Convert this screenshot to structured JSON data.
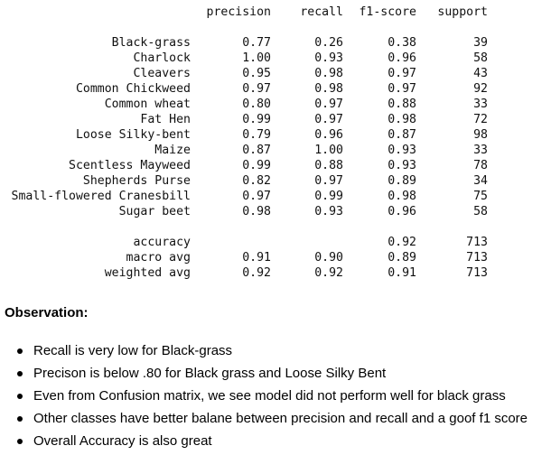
{
  "report": {
    "columns": [
      "precision",
      "recall",
      "f1-score",
      "support"
    ],
    "classes": [
      {
        "label": "Black-grass",
        "precision": "0.77",
        "recall": "0.26",
        "f1": "0.38",
        "support": "39"
      },
      {
        "label": "Charlock",
        "precision": "1.00",
        "recall": "0.93",
        "f1": "0.96",
        "support": "58"
      },
      {
        "label": "Cleavers",
        "precision": "0.95",
        "recall": "0.98",
        "f1": "0.97",
        "support": "43"
      },
      {
        "label": "Common Chickweed",
        "precision": "0.97",
        "recall": "0.98",
        "f1": "0.97",
        "support": "92"
      },
      {
        "label": "Common wheat",
        "precision": "0.80",
        "recall": "0.97",
        "f1": "0.88",
        "support": "33"
      },
      {
        "label": "Fat Hen",
        "precision": "0.99",
        "recall": "0.97",
        "f1": "0.98",
        "support": "72"
      },
      {
        "label": "Loose Silky-bent",
        "precision": "0.79",
        "recall": "0.96",
        "f1": "0.87",
        "support": "98"
      },
      {
        "label": "Maize",
        "precision": "0.87",
        "recall": "1.00",
        "f1": "0.93",
        "support": "33"
      },
      {
        "label": "Scentless Mayweed",
        "precision": "0.99",
        "recall": "0.88",
        "f1": "0.93",
        "support": "78"
      },
      {
        "label": "Shepherds Purse",
        "precision": "0.82",
        "recall": "0.97",
        "f1": "0.89",
        "support": "34"
      },
      {
        "label": "Small-flowered Cranesbill",
        "precision": "0.97",
        "recall": "0.99",
        "f1": "0.98",
        "support": "75"
      },
      {
        "label": "Sugar beet",
        "precision": "0.98",
        "recall": "0.93",
        "f1": "0.96",
        "support": "58"
      }
    ],
    "summary": [
      {
        "label": "accuracy",
        "precision": "",
        "recall": "",
        "f1": "0.92",
        "support": "713"
      },
      {
        "label": "macro avg",
        "precision": "0.91",
        "recall": "0.90",
        "f1": "0.89",
        "support": "713"
      },
      {
        "label": "weighted avg",
        "precision": "0.92",
        "recall": "0.92",
        "f1": "0.91",
        "support": "713"
      }
    ]
  },
  "observation": {
    "title": "Observation:",
    "items": [
      "Recall is very low for Black-grass",
      "Precison is below .80 for Black grass and Loose Silky Bent",
      "Even from Confusion matrix, we see model did not perform well for black grass",
      "Other classes have better balane between precision and recall and a goof f1 score",
      "Overall Accuracy is also great"
    ]
  }
}
